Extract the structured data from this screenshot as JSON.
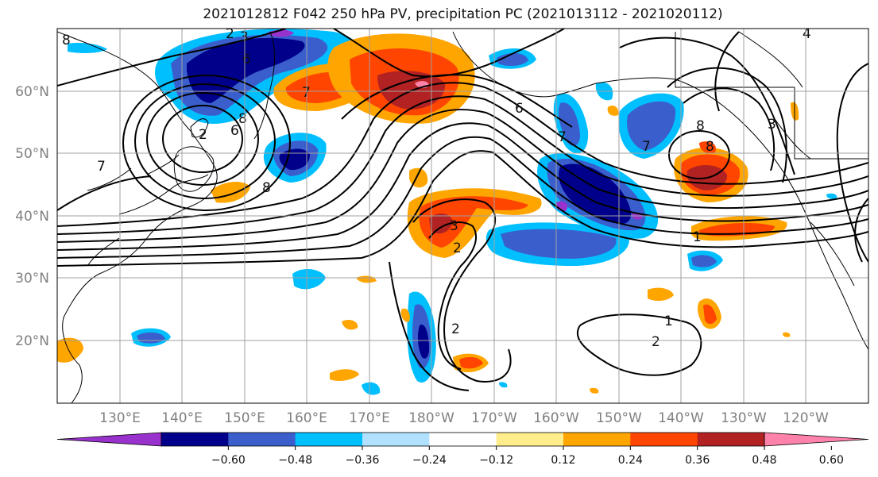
{
  "title": "2021012812 F042 250 hPa PV, precipitation PC (2021013112 - 2021020112)",
  "lat_labels": [
    "60°N",
    "50°N",
    "40°N",
    "30°N",
    "20°N"
  ],
  "lon_labels": [
    "130°E",
    "140°E",
    "150°E",
    "160°E",
    "170°E",
    "180°W",
    "170°W",
    "160°W",
    "150°W",
    "140°W",
    "130°W",
    "120°W"
  ],
  "colorbar": {
    "colors": [
      "#9932cc",
      "#00008b",
      "#3a5fcd",
      "#00bfff",
      "#b0e2ff",
      "#ffffff",
      "#ffec8b",
      "#ffa500",
      "#ff4500",
      "#b22222",
      "#ff82ab"
    ],
    "tick_labels": [
      "−0.60",
      "−0.48",
      "−0.36",
      "−0.24",
      "−0.12",
      "0.12",
      "0.24",
      "0.36",
      "0.48",
      "0.60"
    ]
  },
  "contour_labels": [
    "2",
    "3",
    "6",
    "7",
    "8",
    "7",
    "2",
    "6",
    "8",
    "6",
    "7",
    "8",
    "7",
    "8",
    "3",
    "1",
    "3",
    "2",
    "2",
    "1",
    "2",
    "8",
    "4"
  ]
}
